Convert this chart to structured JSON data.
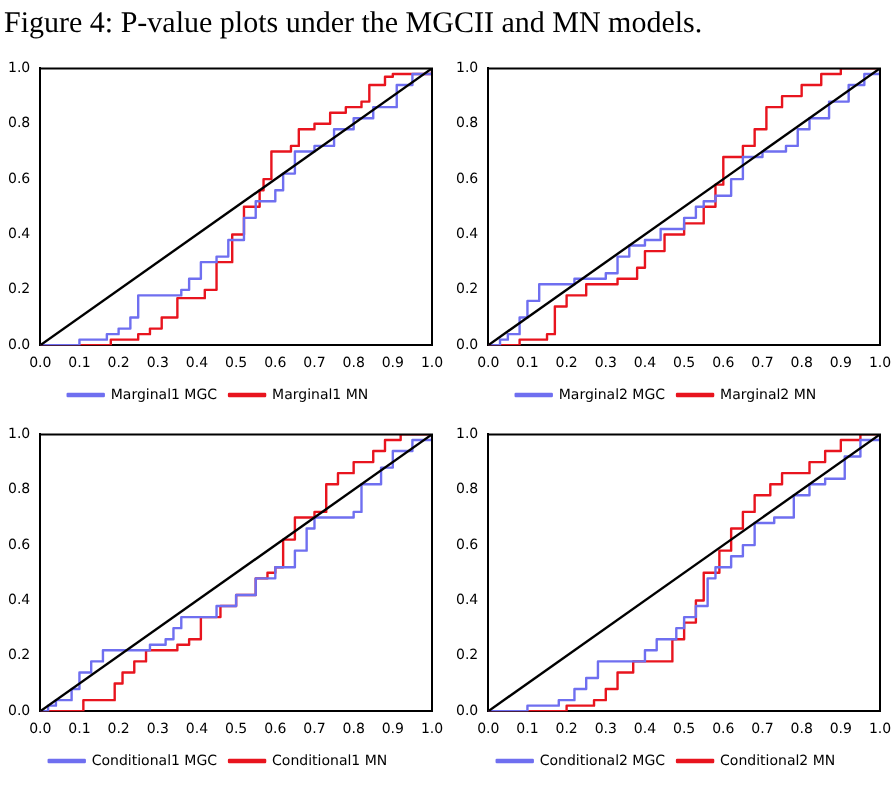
{
  "chart_data": [
    {
      "type": "step",
      "title": "Figure 4: P-value plots under the MGCII and MN models.",
      "xlim": [
        0,
        1
      ],
      "ylim": [
        0,
        1
      ],
      "xticks": [
        {
          "value": 0,
          "label": "0.0"
        },
        {
          "value": 0.1,
          "label": "0.1"
        },
        {
          "value": 0.2,
          "label": "0.2"
        },
        {
          "value": 0.3,
          "label": "0.3"
        },
        {
          "value": 0.4,
          "label": "0.4"
        },
        {
          "value": 0.5,
          "label": "0.5"
        },
        {
          "value": 0.6,
          "label": "0.6"
        },
        {
          "value": 0.7,
          "label": "0.7"
        },
        {
          "value": 0.8,
          "label": "0.8"
        },
        {
          "value": 0.9,
          "label": "0.9"
        },
        {
          "value": 1,
          "label": "1.0"
        }
      ],
      "yticks": [
        {
          "value": 0,
          "label": "0.0"
        },
        {
          "value": 0.2,
          "label": "0.2"
        },
        {
          "value": 0.4,
          "label": "0.4"
        },
        {
          "value": 0.6,
          "label": "0.6"
        },
        {
          "value": 0.8,
          "label": "0.8"
        },
        {
          "value": 1,
          "label": "1.0"
        }
      ],
      "grid": false,
      "legend": "bottom",
      "marker": "none",
      "series": [
        {
          "type": "line",
          "color": "#000000",
          "x": [
            0,
            1
          ],
          "values": [
            0,
            1
          ]
        },
        {
          "name": "Marginal1 MGC",
          "color": "#6f6ff0",
          "x": [
            0,
            0.1,
            0.17,
            0.2,
            0.23,
            0.25,
            0.36,
            0.38,
            0.41,
            0.45,
            0.48,
            0.52,
            0.55,
            0.6,
            0.62,
            0.65,
            0.7,
            0.75,
            0.8,
            0.85,
            0.91,
            0.95,
            1
          ],
          "values": [
            0,
            0.02,
            0.04,
            0.06,
            0.1,
            0.18,
            0.2,
            0.24,
            0.3,
            0.32,
            0.38,
            0.46,
            0.52,
            0.56,
            0.62,
            0.7,
            0.72,
            0.78,
            0.82,
            0.86,
            0.94,
            0.98,
            1
          ]
        },
        {
          "name": "Marginal1 MN",
          "color": "#e8141e",
          "x": [
            0,
            0.18,
            0.25,
            0.28,
            0.31,
            0.35,
            0.42,
            0.45,
            0.49,
            0.52,
            0.56,
            0.57,
            0.59,
            0.64,
            0.66,
            0.7,
            0.74,
            0.78,
            0.82,
            0.84,
            0.88,
            0.9,
            1
          ],
          "values": [
            0,
            0.02,
            0.04,
            0.06,
            0.1,
            0.17,
            0.2,
            0.3,
            0.4,
            0.5,
            0.56,
            0.6,
            0.7,
            0.72,
            0.78,
            0.8,
            0.84,
            0.86,
            0.88,
            0.94,
            0.97,
            0.98,
            1
          ]
        }
      ]
    },
    {
      "type": "step",
      "xlim": [
        0,
        1
      ],
      "ylim": [
        0,
        1
      ],
      "xticks": [
        {
          "value": 0,
          "label": "0.0"
        },
        {
          "value": 0.1,
          "label": "0.1"
        },
        {
          "value": 0.2,
          "label": "0.2"
        },
        {
          "value": 0.3,
          "label": "0.3"
        },
        {
          "value": 0.4,
          "label": "0.4"
        },
        {
          "value": 0.5,
          "label": "0.5"
        },
        {
          "value": 0.6,
          "label": "0.6"
        },
        {
          "value": 0.7,
          "label": "0.7"
        },
        {
          "value": 0.8,
          "label": "0.8"
        },
        {
          "value": 0.9,
          "label": "0.9"
        },
        {
          "value": 1,
          "label": "1.0"
        }
      ],
      "yticks": [
        {
          "value": 0,
          "label": "0.0"
        },
        {
          "value": 0.2,
          "label": "0.2"
        },
        {
          "value": 0.4,
          "label": "0.4"
        },
        {
          "value": 0.6,
          "label": "0.6"
        },
        {
          "value": 0.8,
          "label": "0.8"
        },
        {
          "value": 1,
          "label": "1.0"
        }
      ],
      "grid": false,
      "legend": "bottom",
      "marker": "none",
      "series": [
        {
          "type": "line",
          "color": "#000000",
          "x": [
            0,
            1
          ],
          "values": [
            0,
            1
          ]
        },
        {
          "name": "Marginal2 MGC",
          "color": "#6f6ff0",
          "x": [
            0,
            0.03,
            0.05,
            0.08,
            0.1,
            0.13,
            0.22,
            0.3,
            0.33,
            0.36,
            0.4,
            0.44,
            0.5,
            0.53,
            0.55,
            0.58,
            0.62,
            0.65,
            0.7,
            0.76,
            0.79,
            0.82,
            0.87,
            0.92,
            0.96,
            1
          ],
          "values": [
            0,
            0.02,
            0.04,
            0.1,
            0.16,
            0.22,
            0.24,
            0.26,
            0.32,
            0.36,
            0.38,
            0.42,
            0.46,
            0.5,
            0.52,
            0.54,
            0.6,
            0.68,
            0.7,
            0.72,
            0.78,
            0.82,
            0.88,
            0.94,
            0.98,
            1
          ]
        },
        {
          "name": "Marginal2 MN",
          "color": "#e8141e",
          "x": [
            0,
            0.08,
            0.15,
            0.17,
            0.2,
            0.25,
            0.33,
            0.38,
            0.4,
            0.45,
            0.5,
            0.55,
            0.58,
            0.6,
            0.65,
            0.68,
            0.71,
            0.75,
            0.8,
            0.85,
            0.9,
            1
          ],
          "values": [
            0,
            0.02,
            0.04,
            0.14,
            0.18,
            0.22,
            0.24,
            0.28,
            0.34,
            0.4,
            0.44,
            0.5,
            0.58,
            0.68,
            0.72,
            0.78,
            0.86,
            0.9,
            0.94,
            0.98,
            1,
            1
          ]
        }
      ]
    },
    {
      "type": "step",
      "xlim": [
        0,
        1
      ],
      "ylim": [
        0,
        1
      ],
      "xticks": [
        {
          "value": 0,
          "label": "0.0"
        },
        {
          "value": 0.1,
          "label": "0.1"
        },
        {
          "value": 0.2,
          "label": "0.2"
        },
        {
          "value": 0.3,
          "label": "0.3"
        },
        {
          "value": 0.4,
          "label": "0.4"
        },
        {
          "value": 0.5,
          "label": "0.5"
        },
        {
          "value": 0.6,
          "label": "0.6"
        },
        {
          "value": 0.7,
          "label": "0.7"
        },
        {
          "value": 0.8,
          "label": "0.8"
        },
        {
          "value": 0.9,
          "label": "0.9"
        },
        {
          "value": 1,
          "label": "1.0"
        }
      ],
      "yticks": [
        {
          "value": 0,
          "label": "0.0"
        },
        {
          "value": 0.2,
          "label": "0.2"
        },
        {
          "value": 0.4,
          "label": "0.4"
        },
        {
          "value": 0.6,
          "label": "0.6"
        },
        {
          "value": 0.8,
          "label": "0.8"
        },
        {
          "value": 1,
          "label": "1.0"
        }
      ],
      "grid": false,
      "legend": "bottom",
      "marker": "none",
      "series": [
        {
          "type": "line",
          "color": "#000000",
          "x": [
            0,
            1
          ],
          "values": [
            0,
            1
          ]
        },
        {
          "name": "Conditional1 MGC",
          "color": "#6f6ff0",
          "x": [
            0,
            0.02,
            0.04,
            0.08,
            0.1,
            0.13,
            0.16,
            0.28,
            0.32,
            0.34,
            0.36,
            0.45,
            0.5,
            0.55,
            0.6,
            0.65,
            0.68,
            0.7,
            0.8,
            0.82,
            0.87,
            0.9,
            0.95,
            1
          ],
          "values": [
            0,
            0.02,
            0.04,
            0.08,
            0.14,
            0.18,
            0.22,
            0.24,
            0.26,
            0.3,
            0.34,
            0.38,
            0.42,
            0.48,
            0.52,
            0.58,
            0.66,
            0.7,
            0.72,
            0.82,
            0.88,
            0.94,
            0.98,
            1
          ]
        },
        {
          "name": "Conditional1 MN",
          "color": "#e8141e",
          "x": [
            0,
            0.11,
            0.19,
            0.21,
            0.24,
            0.27,
            0.35,
            0.38,
            0.41,
            0.46,
            0.5,
            0.55,
            0.58,
            0.6,
            0.62,
            0.65,
            0.7,
            0.73,
            0.76,
            0.8,
            0.85,
            0.88,
            0.92,
            1
          ],
          "values": [
            0,
            0.04,
            0.1,
            0.14,
            0.18,
            0.22,
            0.24,
            0.26,
            0.34,
            0.38,
            0.42,
            0.48,
            0.5,
            0.52,
            0.62,
            0.7,
            0.72,
            0.82,
            0.86,
            0.9,
            0.94,
            0.98,
            1,
            1
          ]
        }
      ]
    },
    {
      "type": "step",
      "xlim": [
        0,
        1
      ],
      "ylim": [
        0,
        1
      ],
      "xticks": [
        {
          "value": 0,
          "label": "0.0"
        },
        {
          "value": 0.1,
          "label": "0.1"
        },
        {
          "value": 0.2,
          "label": "0.2"
        },
        {
          "value": 0.3,
          "label": "0.3"
        },
        {
          "value": 0.4,
          "label": "0.4"
        },
        {
          "value": 0.5,
          "label": "0.5"
        },
        {
          "value": 0.6,
          "label": "0.6"
        },
        {
          "value": 0.7,
          "label": "0.7"
        },
        {
          "value": 0.8,
          "label": "0.8"
        },
        {
          "value": 0.9,
          "label": "0.9"
        },
        {
          "value": 1,
          "label": "1.0"
        }
      ],
      "yticks": [
        {
          "value": 0,
          "label": "0.0"
        },
        {
          "value": 0.2,
          "label": "0.2"
        },
        {
          "value": 0.4,
          "label": "0.4"
        },
        {
          "value": 0.6,
          "label": "0.6"
        },
        {
          "value": 0.8,
          "label": "0.8"
        },
        {
          "value": 1,
          "label": "1.0"
        }
      ],
      "grid": false,
      "legend": "bottom",
      "marker": "none",
      "series": [
        {
          "type": "line",
          "color": "#000000",
          "x": [
            0,
            1
          ],
          "values": [
            0,
            1
          ]
        },
        {
          "name": "Conditional2 MGC",
          "color": "#6f6ff0",
          "x": [
            0,
            0.1,
            0.18,
            0.22,
            0.25,
            0.28,
            0.4,
            0.43,
            0.48,
            0.5,
            0.53,
            0.56,
            0.58,
            0.62,
            0.65,
            0.68,
            0.73,
            0.78,
            0.82,
            0.86,
            0.91,
            0.95,
            1
          ],
          "values": [
            0,
            0.02,
            0.04,
            0.08,
            0.12,
            0.18,
            0.22,
            0.26,
            0.3,
            0.34,
            0.38,
            0.48,
            0.52,
            0.56,
            0.6,
            0.68,
            0.7,
            0.78,
            0.82,
            0.84,
            0.92,
            0.98,
            1
          ]
        },
        {
          "name": "Conditional2 MN",
          "color": "#e8141e",
          "x": [
            0,
            0.2,
            0.27,
            0.3,
            0.33,
            0.37,
            0.47,
            0.5,
            0.53,
            0.55,
            0.59,
            0.62,
            0.65,
            0.68,
            0.72,
            0.75,
            0.82,
            0.86,
            0.9,
            0.95,
            1
          ],
          "values": [
            0,
            0.02,
            0.04,
            0.08,
            0.14,
            0.18,
            0.26,
            0.32,
            0.4,
            0.5,
            0.58,
            0.66,
            0.72,
            0.78,
            0.82,
            0.86,
            0.9,
            0.94,
            0.98,
            1,
            1
          ]
        }
      ]
    }
  ]
}
